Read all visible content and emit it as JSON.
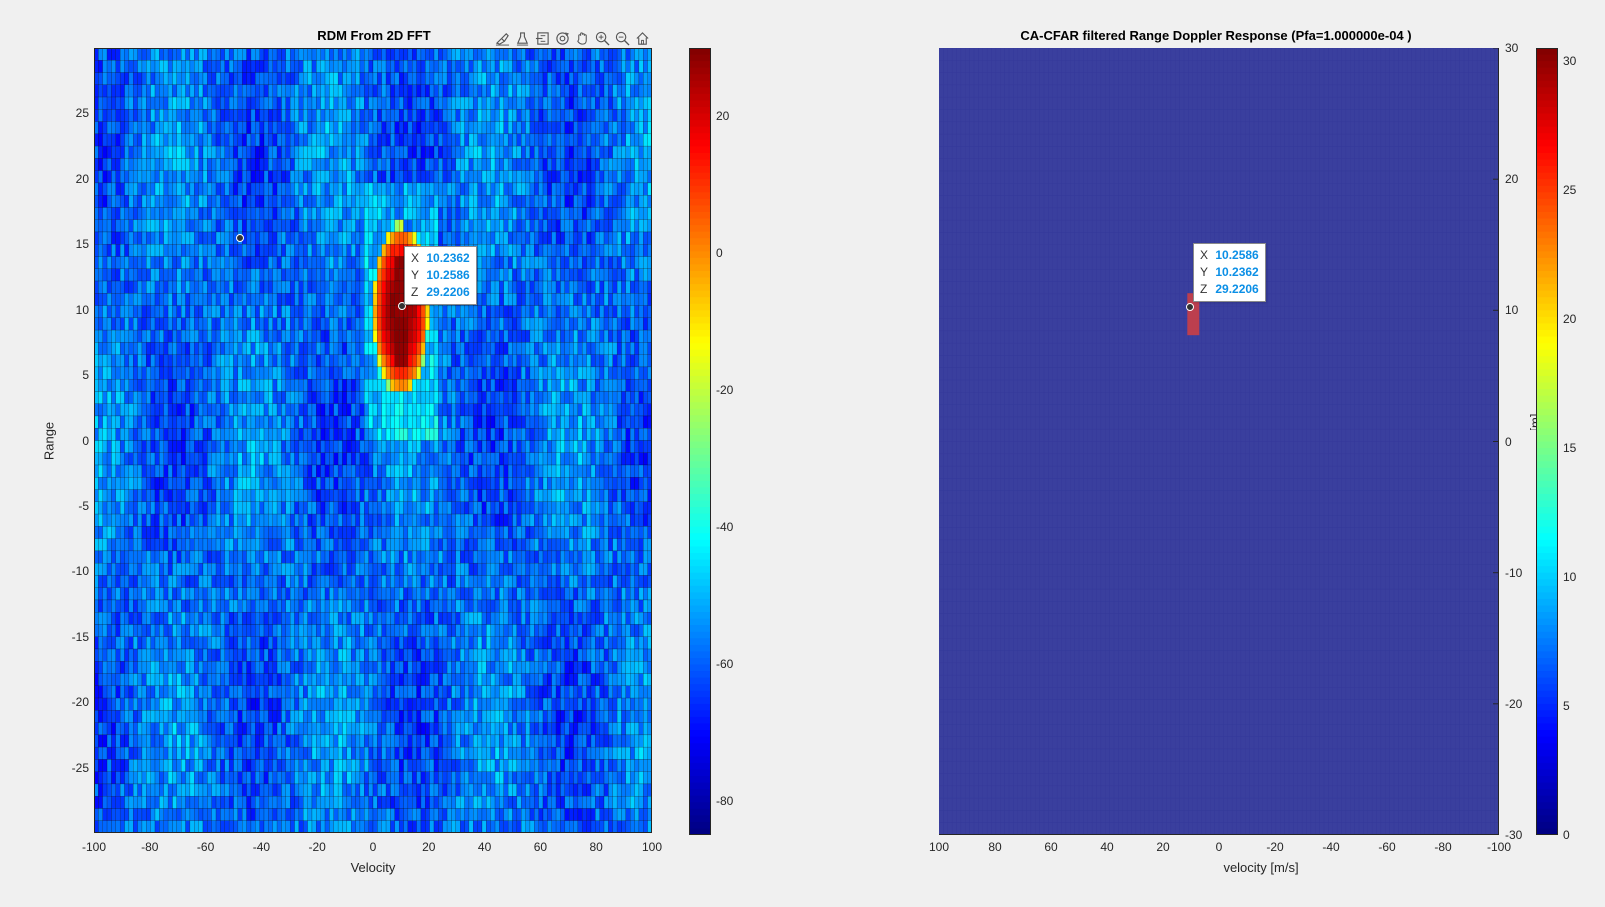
{
  "chart_data": [
    {
      "type": "heatmap",
      "title": "RDM From 2D FFT",
      "xlabel": "Velocity",
      "ylabel": "Range",
      "xlim": [
        -100,
        100
      ],
      "ylim": [
        -30,
        30
      ],
      "x_ticks": [
        "-100",
        "-80",
        "-60",
        "-40",
        "-20",
        "0",
        "20",
        "40",
        "60",
        "80",
        "100"
      ],
      "y_ticks": [
        "25",
        "20",
        "15",
        "10",
        "5",
        "0",
        "-5",
        "-10",
        "-15",
        "-20",
        "-25"
      ],
      "colorbar": {
        "colormap": "jet",
        "range": [
          -85,
          30
        ],
        "ticks": [
          "20",
          "0",
          "-20",
          "-40",
          "-60",
          "-80"
        ]
      },
      "noise_floor_db": -58,
      "peak": {
        "x": 10.2362,
        "y": 10.2586,
        "z": 29.2206,
        "velocity_extent": [
          0,
          20
        ],
        "range_extent": [
          3.5,
          16.5
        ]
      },
      "markers": [
        {
          "x": -48,
          "y": 15.5
        }
      ],
      "datatip": {
        "x_key": "X",
        "y_key": "Y",
        "z_key": "Z",
        "x": "10.2362",
        "y": "10.2586",
        "z": "29.2206"
      }
    },
    {
      "type": "heatmap",
      "title": "CA-CFAR filtered Range Doppler Response (Pfa=1.000000e-04 )",
      "xlabel": "velocity [m/s]",
      "ylabel": "range [m]",
      "xlim": [
        100,
        -100
      ],
      "ylim": [
        -30,
        30
      ],
      "x_ticks": [
        "100",
        "80",
        "60",
        "40",
        "20",
        "0",
        "-20",
        "-40",
        "-60",
        "-80",
        "-100"
      ],
      "y_ticks": [
        "30",
        "20",
        "10",
        "0",
        "-10",
        "-20",
        "-30"
      ],
      "colorbar": {
        "colormap": "jet",
        "range": [
          0,
          30.5
        ],
        "ticks": [
          "30",
          "25",
          "20",
          "15",
          "10",
          "5",
          "0"
        ]
      },
      "background_value": 0,
      "detection": {
        "x": 10.2586,
        "y": 10.2362,
        "z": 29.2206
      },
      "datatip": {
        "x_key": "X",
        "y_key": "Y",
        "z_key": "Z",
        "x": "10.2586",
        "y": "10.2362",
        "z": "29.2206"
      }
    }
  ],
  "toolbar": {
    "icons": [
      "brush-icon",
      "data-tips-icon",
      "pan-select-icon",
      "rotate-icon",
      "pan-hand-icon",
      "zoom-in-icon",
      "zoom-out-icon",
      "home-icon"
    ]
  }
}
